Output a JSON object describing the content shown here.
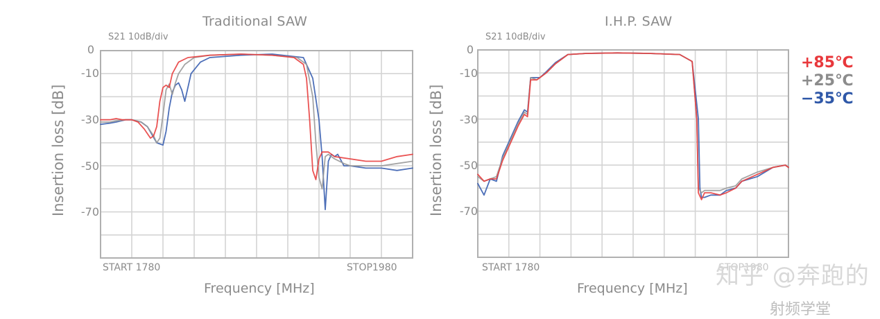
{
  "chart_data": [
    {
      "type": "line",
      "title": "Traditional SAW",
      "subtitle": "S21 10dB/div",
      "xlabel": "Frequency [MHz]",
      "ylabel": "Insertion loss [dB]",
      "x_start_label": "START 1780",
      "x_stop_label": "STOP1980",
      "xlim": [
        1780,
        1980
      ],
      "ylim": [
        -90,
        0
      ],
      "yticks": [
        0,
        -10,
        -30,
        -50,
        -70
      ],
      "grid": true,
      "x_divisions": 10,
      "y_divisions": 9,
      "series": [
        {
          "name": "+85℃",
          "color": "#e84040",
          "x": [
            1780,
            1786,
            1790,
            1794,
            1800,
            1804,
            1808,
            1810,
            1812,
            1814,
            1816,
            1818,
            1820,
            1822,
            1824,
            1826,
            1830,
            1836,
            1850,
            1870,
            1890,
            1904,
            1910,
            1912,
            1914,
            1916,
            1918,
            1920,
            1922,
            1926,
            1930,
            1940,
            1950,
            1960,
            1970,
            1980
          ],
          "y": [
            -30,
            -30,
            -29.5,
            -30,
            -30,
            -31,
            -34,
            -36,
            -38,
            -37,
            -33,
            -22,
            -16,
            -15,
            -16,
            -10,
            -5,
            -3,
            -2,
            -1.5,
            -2,
            -3,
            -6,
            -12,
            -30,
            -52,
            -56,
            -47,
            -44,
            -44,
            -46,
            -47,
            -48,
            -48,
            -46,
            -45
          ]
        },
        {
          "name": "+25℃",
          "color": "#9a9a9a",
          "x": [
            1780,
            1786,
            1790,
            1796,
            1800,
            1806,
            1810,
            1814,
            1816,
            1818,
            1820,
            1822,
            1824,
            1826,
            1828,
            1830,
            1834,
            1840,
            1850,
            1870,
            1890,
            1906,
            1912,
            1916,
            1918,
            1920,
            1922,
            1924,
            1926,
            1930,
            1936,
            1940,
            1950,
            1960,
            1970,
            1980
          ],
          "y": [
            -31,
            -31,
            -30.5,
            -30,
            -30,
            -31,
            -33,
            -37,
            -40,
            -38,
            -28,
            -17,
            -14.5,
            -19,
            -14,
            -10,
            -6,
            -3,
            -2,
            -1.5,
            -2,
            -3,
            -6,
            -20,
            -40,
            -55,
            -60,
            -46,
            -45,
            -47,
            -49,
            -50,
            -50,
            -50,
            -49,
            -48
          ]
        },
        {
          "name": "−35℃",
          "color": "#3a5fb0",
          "x": [
            1780,
            1786,
            1790,
            1796,
            1800,
            1806,
            1810,
            1816,
            1820,
            1822,
            1824,
            1826,
            1828,
            1830,
            1832,
            1834,
            1838,
            1844,
            1850,
            1870,
            1890,
            1910,
            1916,
            1920,
            1922,
            1924,
            1926,
            1928,
            1930,
            1932,
            1936,
            1940,
            1950,
            1960,
            1970,
            1980
          ],
          "y": [
            -32,
            -31.5,
            -31,
            -30,
            -30,
            -31,
            -33,
            -40,
            -41,
            -35,
            -25,
            -18,
            -15,
            -14,
            -17,
            -22,
            -10,
            -5,
            -3,
            -2,
            -1.5,
            -3,
            -12,
            -30,
            -46,
            -69,
            -48,
            -45,
            -46,
            -45,
            -50,
            -50,
            -51,
            -51,
            -52,
            -51
          ]
        }
      ]
    },
    {
      "type": "line",
      "title": "I.H.P. SAW",
      "subtitle": "S21 10dB/div",
      "xlabel": "Frequency [MHz]",
      "ylabel": "Insertion loss [dB]",
      "x_start_label": "START 1780",
      "x_stop_label": "STOP1980",
      "xlim": [
        1780,
        1980
      ],
      "ylim": [
        -90,
        0
      ],
      "yticks": [
        0,
        -10,
        -30,
        -50,
        -70
      ],
      "grid": true,
      "x_divisions": 10,
      "y_divisions": 9,
      "series": [
        {
          "name": "+85℃",
          "color": "#e84040",
          "x": [
            1780,
            1784,
            1788,
            1792,
            1796,
            1800,
            1806,
            1810,
            1812,
            1814,
            1818,
            1820,
            1824,
            1830,
            1838,
            1850,
            1870,
            1890,
            1910,
            1918,
            1921,
            1922,
            1924,
            1926,
            1930,
            1936,
            1940,
            1946,
            1950,
            1960,
            1970,
            1978,
            1980
          ],
          "y": [
            -54,
            -57,
            -56,
            -56,
            -48,
            -42,
            -33,
            -28,
            -29,
            -13,
            -13,
            -12,
            -10,
            -6,
            -2,
            -1.5,
            -1.3,
            -1.5,
            -2,
            -5,
            -30,
            -62,
            -65,
            -62,
            -62,
            -63,
            -62,
            -60,
            -57,
            -54,
            -51,
            -50,
            -51
          ]
        },
        {
          "name": "+25℃",
          "color": "#9a9a9a",
          "x": [
            1780,
            1784,
            1788,
            1792,
            1796,
            1800,
            1806,
            1810,
            1812,
            1814,
            1818,
            1820,
            1824,
            1830,
            1838,
            1850,
            1870,
            1890,
            1910,
            1918,
            1921,
            1922,
            1924,
            1926,
            1930,
            1936,
            1940,
            1946,
            1950,
            1960,
            1970,
            1978,
            1980
          ],
          "y": [
            -55,
            -57,
            -56,
            -55,
            -47,
            -41,
            -32,
            -27,
            -28,
            -12,
            -13,
            -12,
            -10,
            -6,
            -2,
            -1.5,
            -1.3,
            -1.5,
            -2,
            -5,
            -30,
            -60,
            -62,
            -61,
            -61,
            -61,
            -60,
            -59,
            -56,
            -53,
            -51,
            -50,
            -51
          ]
        },
        {
          "name": "−35℃",
          "color": "#3a5fb0",
          "x": [
            1780,
            1784,
            1788,
            1792,
            1796,
            1800,
            1806,
            1810,
            1812,
            1814,
            1818,
            1820,
            1824,
            1830,
            1838,
            1850,
            1870,
            1890,
            1910,
            1918,
            1922,
            1923,
            1924,
            1926,
            1930,
            1936,
            1940,
            1946,
            1950,
            1960,
            1970,
            1978,
            1980
          ],
          "y": [
            -58,
            -63,
            -56,
            -57,
            -46,
            -40,
            -31,
            -26,
            -27,
            -12,
            -12,
            -12,
            -9.5,
            -5.5,
            -2,
            -1.5,
            -1.3,
            -1.5,
            -2,
            -5,
            -30,
            -60,
            -64,
            -64,
            -63,
            -63,
            -61,
            -60,
            -57,
            -55,
            -51,
            -50,
            -51
          ]
        }
      ]
    }
  ],
  "legend": {
    "items": [
      {
        "label": "+85℃",
        "color": "#e8383c"
      },
      {
        "label": "+25℃",
        "color": "#8c8c8c"
      },
      {
        "label": "−35℃",
        "color": "#2f58a8"
      }
    ]
  },
  "watermark": {
    "text": "知乎 @奔跑的",
    "text2": "射频学堂"
  }
}
